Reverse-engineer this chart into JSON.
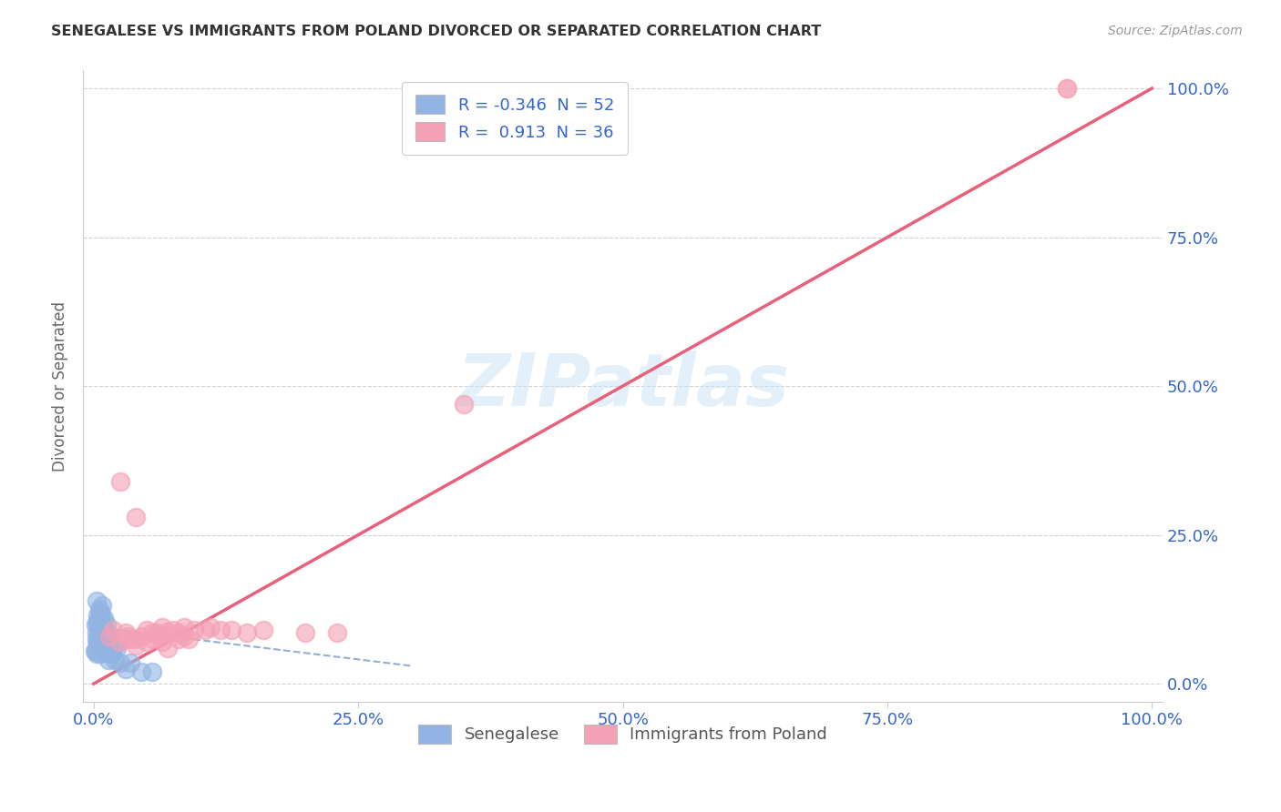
{
  "title": "SENEGALESE VS IMMIGRANTS FROM POLAND DIVORCED OR SEPARATED CORRELATION CHART",
  "source": "Source: ZipAtlas.com",
  "ylabel": "Divorced or Separated",
  "x_tick_labels": [
    "0.0%",
    "25.0%",
    "50.0%",
    "75.0%",
    "100.0%"
  ],
  "y_tick_labels_right": [
    "100.0%",
    "75.0%",
    "50.0%",
    "25.0%",
    "0.0%"
  ],
  "x_ticks": [
    0,
    25,
    50,
    75,
    100
  ],
  "y_ticks": [
    0,
    25,
    50,
    75,
    100
  ],
  "xlim": [
    -1,
    101
  ],
  "ylim": [
    -3,
    103
  ],
  "legend1_label": "R = -0.346  N = 52",
  "legend2_label": "R =  0.913  N = 36",
  "legend_title1": "Senegalese",
  "legend_title2": "Immigrants from Poland",
  "r_blue": -0.346,
  "r_pink": 0.913,
  "watermark": "ZIPatlas",
  "blue_color": "#92b4e3",
  "pink_color": "#f4a0b5",
  "blue_line_color": "#7799cc",
  "pink_line_color": "#e8607a",
  "axis_label_color": "#3366cc",
  "grid_color": "#cccccc",
  "blue_points": [
    [
      0.3,
      14.0
    ],
    [
      0.5,
      12.5
    ],
    [
      0.8,
      13.2
    ],
    [
      0.4,
      11.5
    ],
    [
      0.6,
      12.0
    ],
    [
      0.2,
      10.0
    ],
    [
      0.5,
      9.5
    ],
    [
      0.7,
      10.5
    ],
    [
      1.0,
      11.0
    ],
    [
      0.3,
      8.5
    ],
    [
      0.6,
      9.0
    ],
    [
      0.4,
      10.0
    ],
    [
      0.8,
      9.5
    ],
    [
      1.2,
      10.0
    ],
    [
      0.5,
      8.0
    ],
    [
      0.7,
      11.5
    ],
    [
      0.3,
      7.5
    ],
    [
      0.9,
      8.5
    ],
    [
      1.1,
      9.0
    ],
    [
      1.5,
      8.0
    ],
    [
      0.4,
      10.5
    ],
    [
      0.7,
      7.0
    ],
    [
      0.5,
      6.5
    ],
    [
      1.0,
      7.5
    ],
    [
      2.0,
      6.5
    ],
    [
      0.1,
      5.5
    ],
    [
      2.2,
      6.0
    ],
    [
      1.3,
      8.0
    ],
    [
      0.8,
      9.0
    ],
    [
      0.5,
      7.0
    ],
    [
      0.4,
      6.8
    ],
    [
      0.9,
      8.5
    ],
    [
      1.1,
      7.5
    ],
    [
      1.5,
      6.0
    ],
    [
      0.6,
      5.0
    ],
    [
      0.3,
      5.0
    ],
    [
      0.8,
      6.0
    ],
    [
      0.6,
      7.5
    ],
    [
      1.0,
      5.5
    ],
    [
      1.4,
      4.0
    ],
    [
      0.2,
      5.5
    ],
    [
      0.7,
      8.0
    ],
    [
      1.2,
      6.5
    ],
    [
      0.4,
      7.0
    ],
    [
      1.7,
      5.0
    ],
    [
      3.5,
      3.5
    ],
    [
      4.5,
      2.0
    ],
    [
      3.0,
      2.5
    ],
    [
      5.5,
      2.0
    ],
    [
      2.0,
      4.0
    ],
    [
      1.5,
      5.0
    ],
    [
      2.5,
      3.5
    ]
  ],
  "pink_points": [
    [
      1.5,
      8.0
    ],
    [
      3.0,
      8.5
    ],
    [
      5.0,
      9.0
    ],
    [
      6.5,
      9.5
    ],
    [
      8.0,
      8.5
    ],
    [
      9.5,
      9.0
    ],
    [
      4.0,
      7.5
    ],
    [
      5.5,
      8.5
    ],
    [
      2.5,
      7.0
    ],
    [
      7.0,
      8.8
    ],
    [
      8.5,
      8.0
    ],
    [
      12.0,
      9.0
    ],
    [
      10.5,
      9.0
    ],
    [
      3.5,
      7.5
    ],
    [
      4.5,
      8.0
    ],
    [
      6.5,
      8.0
    ],
    [
      8.5,
      9.5
    ],
    [
      2.5,
      34.0
    ],
    [
      4.0,
      28.0
    ],
    [
      6.0,
      8.5
    ],
    [
      7.5,
      9.0
    ],
    [
      9.0,
      7.5
    ],
    [
      11.0,
      9.5
    ],
    [
      1.8,
      9.0
    ],
    [
      3.2,
      8.0
    ],
    [
      16.0,
      9.0
    ],
    [
      20.0,
      8.5
    ],
    [
      23.0,
      8.5
    ],
    [
      13.0,
      9.0
    ],
    [
      14.5,
      8.5
    ],
    [
      5.0,
      7.0
    ],
    [
      5.5,
      7.5
    ],
    [
      6.5,
      7.0
    ],
    [
      8.0,
      7.5
    ],
    [
      4.0,
      6.5
    ],
    [
      7.0,
      6.0
    ]
  ],
  "pink_outlier_high": [
    92.0,
    100.0
  ],
  "pink_outlier_mid": [
    35.0,
    47.0
  ],
  "pink_line_x": [
    0,
    100
  ],
  "pink_line_y": [
    0,
    100
  ],
  "blue_line_x": [
    0,
    30
  ],
  "blue_line_y": [
    9.5,
    3.0
  ]
}
